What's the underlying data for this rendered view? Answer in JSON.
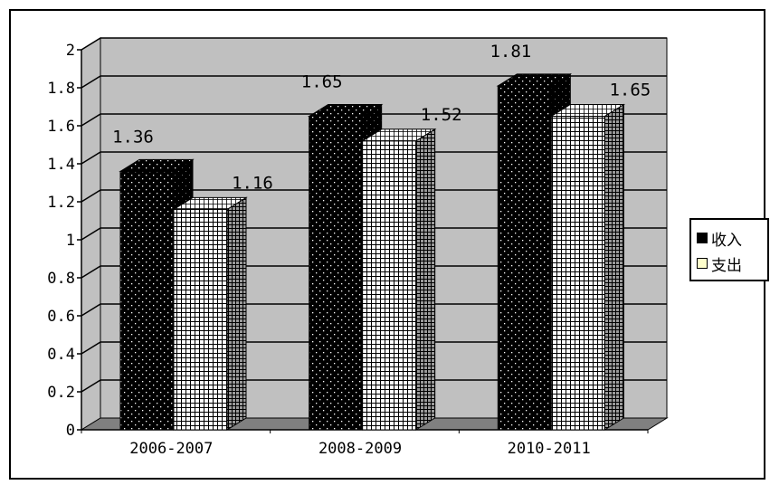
{
  "chart_data": {
    "type": "bar",
    "title": "",
    "xlabel": "",
    "ylabel": "",
    "categories": [
      "2006-2007",
      "2008-2009",
      "2010-2011"
    ],
    "series": [
      {
        "name": "收入",
        "values": [
          1.36,
          1.65,
          1.81
        ],
        "labels": [
          "1.36",
          "1.65",
          "1.81"
        ],
        "color": "#000000"
      },
      {
        "name": "支出",
        "values": [
          1.16,
          1.52,
          1.65
        ],
        "labels": [
          "1.16",
          "1.52",
          "1.65"
        ],
        "color": "#ffffcc"
      }
    ],
    "ylim": [
      0,
      2
    ],
    "yticks": [
      0,
      0.2,
      0.4,
      0.6,
      0.8,
      1,
      1.2,
      1.4,
      1.6,
      1.8,
      2
    ],
    "ytick_labels": [
      "0",
      "0.2",
      "0.4",
      "0.6",
      "0.8",
      "1",
      "1.2",
      "1.4",
      "1.6",
      "1.8",
      "2"
    ],
    "grid": true,
    "legend_position": "right",
    "style": "3d-clustered-column",
    "wall_color": "#c0c0c0",
    "floor_color": "#808080"
  }
}
